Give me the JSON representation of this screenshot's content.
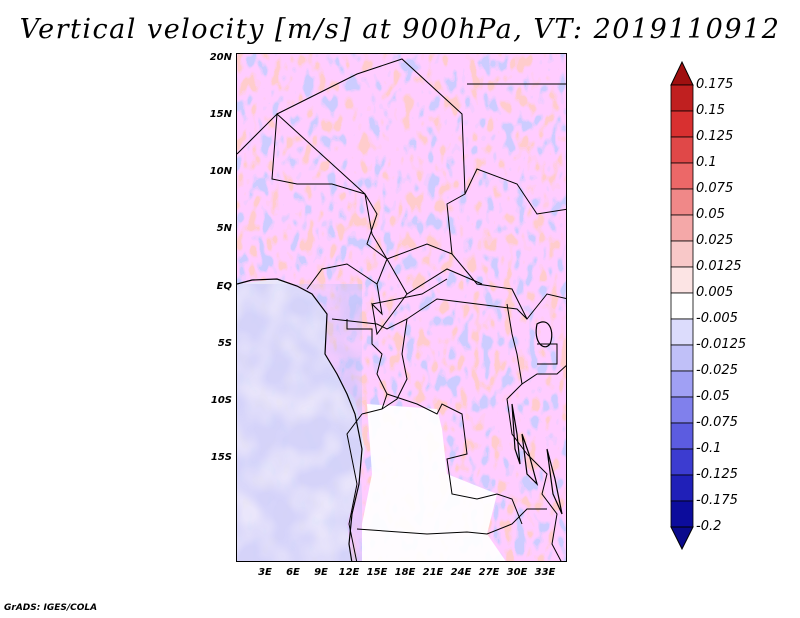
{
  "title": "Vertical velocity [m/s] at 900hPa, VT: 2019110912",
  "footer": "GrADS: IGES/COLA",
  "map": {
    "lat_ticks": [
      "20N",
      "15N",
      "10N",
      "5N",
      "EQ",
      "5S",
      "10S",
      "15S"
    ],
    "lon_ticks": [
      "3E",
      "6E",
      "9E",
      "12E",
      "15E",
      "18E",
      "21E",
      "24E",
      "27E",
      "30E",
      "33E"
    ],
    "legend": "Vertical velocity colorbar"
  },
  "colorbar": {
    "levels": [
      "0.175",
      "0.15",
      "0.125",
      "0.1",
      "0.075",
      "0.05",
      "0.025",
      "0.0125",
      "0.005",
      "-0.005",
      "-0.0125",
      "-0.025",
      "-0.05",
      "-0.075",
      "-0.1",
      "-0.125",
      "-0.175",
      "-0.2"
    ],
    "colors": [
      "#a01010",
      "#c02020",
      "#d83030",
      "#e04848",
      "#ec6868",
      "#f08888",
      "#f4a8a8",
      "#f8c8c8",
      "#fce4e4",
      "#ffffff",
      "#dcdcfc",
      "#c0c0f8",
      "#a0a0f4",
      "#8080ec",
      "#5c5ce0",
      "#3c3cd0",
      "#2020b8",
      "#0c0c9c"
    ]
  }
}
